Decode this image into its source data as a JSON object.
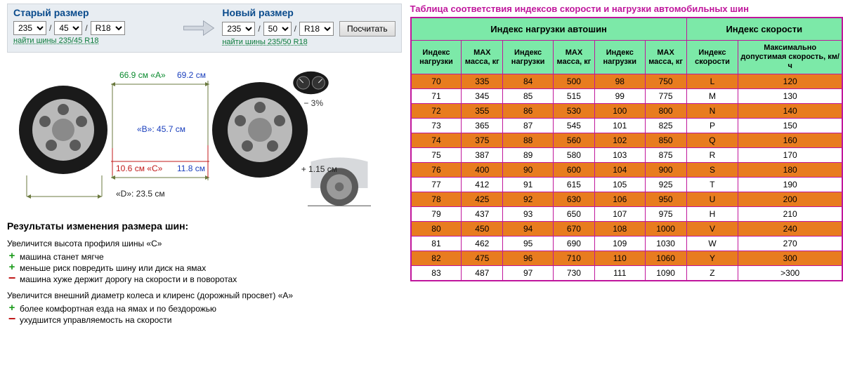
{
  "old": {
    "title": "Старый размер",
    "width": "235",
    "profile": "45",
    "rim": "R18",
    "link": "найти шины 235/45 R18"
  },
  "nov": {
    "title": "Новый размер",
    "width": "235",
    "profile": "50",
    "rim": "R18",
    "link": "найти шины 235/50 R18"
  },
  "calc_btn": "Посчитать",
  "diagram": {
    "a_old": "66.9 см «А»",
    "a_new": "69.2 см",
    "b": "«B»: 45.7 см",
    "c_old": "10.6 см «С»",
    "c_new": "11.8 см",
    "d": "«D»: 23.5 см",
    "pct": "− 3%",
    "clearance": "+ 1.15 см"
  },
  "results": {
    "title": "Результаты изменения размера шин:",
    "c_title": "Увеличится высота профиля шины «C»",
    "c_plus1": "машина станет мягче",
    "c_plus2": "меньше риск повредить шину или диск на ямах",
    "c_minus": "машина хуже держит дорогу на скорости и в поворотах",
    "a_title": "Увеличится внешний диаметр колеса и клиренс (дорожный просвет) «A»",
    "a_plus": "более комфортная езда на ямах и по бездорожью",
    "a_minus": "ухудшится управляемость на скорости"
  },
  "table": {
    "title": "Таблица соответствия индексов скорости и нагрузки автомобильных шин",
    "h_load": "Индекс нагрузки автошин",
    "h_speed": "Индекс скорости",
    "sub_idx": "Индекс нагрузки",
    "sub_mass": "MAX масса, кг",
    "sub_sidx": "Индекс скорости",
    "sub_maxspeed": "Максимально допустимая скорость, км/ч",
    "rows": [
      [
        "70",
        "335",
        "84",
        "500",
        "98",
        "750",
        "L",
        "120"
      ],
      [
        "71",
        "345",
        "85",
        "515",
        "99",
        "775",
        "M",
        "130"
      ],
      [
        "72",
        "355",
        "86",
        "530",
        "100",
        "800",
        "N",
        "140"
      ],
      [
        "73",
        "365",
        "87",
        "545",
        "101",
        "825",
        "P",
        "150"
      ],
      [
        "74",
        "375",
        "88",
        "560",
        "102",
        "850",
        "Q",
        "160"
      ],
      [
        "75",
        "387",
        "89",
        "580",
        "103",
        "875",
        "R",
        "170"
      ],
      [
        "76",
        "400",
        "90",
        "600",
        "104",
        "900",
        "S",
        "180"
      ],
      [
        "77",
        "412",
        "91",
        "615",
        "105",
        "925",
        "T",
        "190"
      ],
      [
        "78",
        "425",
        "92",
        "630",
        "106",
        "950",
        "U",
        "200"
      ],
      [
        "79",
        "437",
        "93",
        "650",
        "107",
        "975",
        "H",
        "210"
      ],
      [
        "80",
        "450",
        "94",
        "670",
        "108",
        "1000",
        "V",
        "240"
      ],
      [
        "81",
        "462",
        "95",
        "690",
        "109",
        "1030",
        "W",
        "270"
      ],
      [
        "82",
        "475",
        "96",
        "710",
        "110",
        "1060",
        "Y",
        "300"
      ],
      [
        "83",
        "487",
        "97",
        "730",
        "111",
        "1090",
        "Z",
        ">300"
      ]
    ]
  },
  "colors": {
    "orange": "#e87c1f",
    "pink_border": "#c0169c",
    "green_bg": "#7ce9a8"
  }
}
